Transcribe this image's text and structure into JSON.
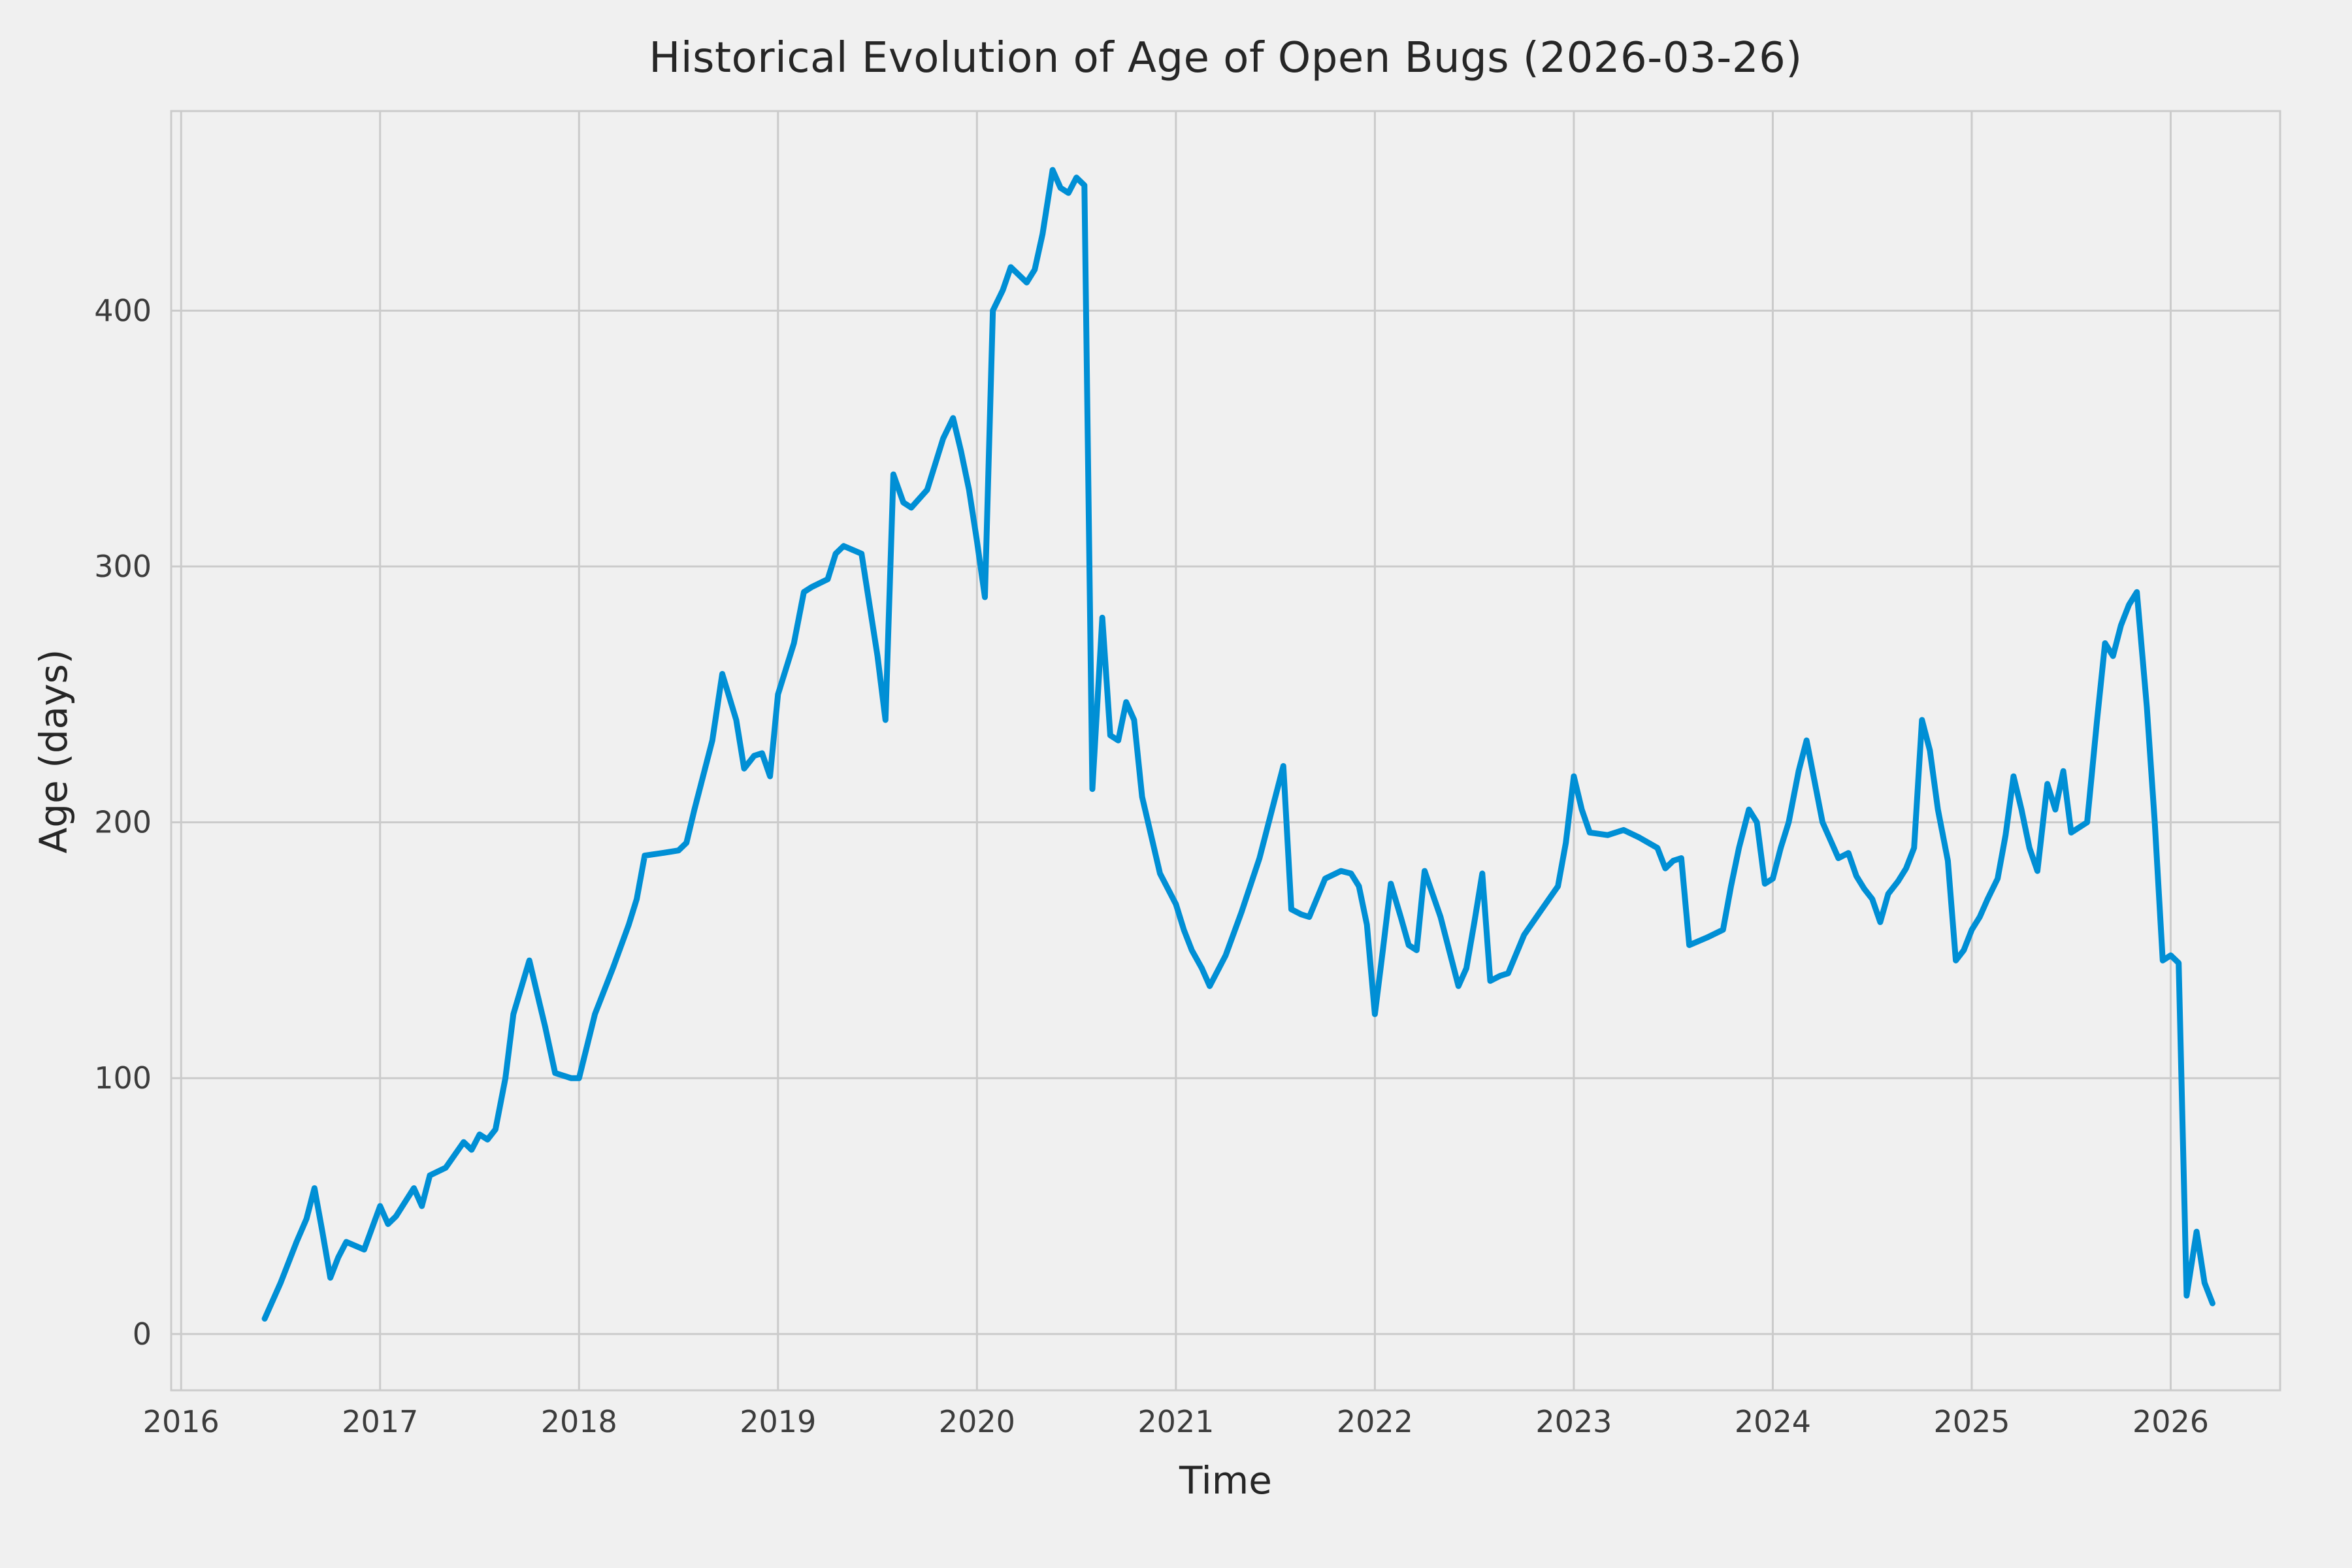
{
  "figure": {
    "background": "#f0f0f0",
    "grid_color": "#cbcbcb",
    "text_color": "#3c3c3c"
  },
  "chart_data": {
    "type": "line",
    "title": "Historical Evolution of Age of Open Bugs (2026-03-26)",
    "xlabel": "Time",
    "ylabel": "Age (days)",
    "line_color": "#008fd5",
    "line_width": 9,
    "grid": true,
    "legend": "none",
    "xlim": [
      2015.95,
      2026.55
    ],
    "ylim": [
      -22,
      478
    ],
    "xticks": [
      2016,
      2017,
      2018,
      2019,
      2020,
      2021,
      2022,
      2023,
      2024,
      2025,
      2026
    ],
    "yticks": [
      0,
      100,
      200,
      300,
      400
    ],
    "points": [
      [
        2016.42,
        6
      ],
      [
        2016.5,
        20
      ],
      [
        2016.58,
        36
      ],
      [
        2016.63,
        45
      ],
      [
        2016.67,
        57
      ],
      [
        2016.71,
        40
      ],
      [
        2016.75,
        22
      ],
      [
        2016.79,
        30
      ],
      [
        2016.83,
        36
      ],
      [
        2016.92,
        33
      ],
      [
        2017.0,
        50
      ],
      [
        2017.04,
        43
      ],
      [
        2017.08,
        46
      ],
      [
        2017.17,
        57
      ],
      [
        2017.21,
        50
      ],
      [
        2017.25,
        62
      ],
      [
        2017.33,
        65
      ],
      [
        2017.42,
        75
      ],
      [
        2017.46,
        72
      ],
      [
        2017.5,
        78
      ],
      [
        2017.54,
        76
      ],
      [
        2017.58,
        80
      ],
      [
        2017.63,
        100
      ],
      [
        2017.67,
        125
      ],
      [
        2017.75,
        146
      ],
      [
        2017.79,
        133
      ],
      [
        2017.83,
        120
      ],
      [
        2017.88,
        102
      ],
      [
        2017.92,
        101
      ],
      [
        2017.96,
        100
      ],
      [
        2018.0,
        100
      ],
      [
        2018.08,
        125
      ],
      [
        2018.17,
        143
      ],
      [
        2018.25,
        160
      ],
      [
        2018.29,
        170
      ],
      [
        2018.33,
        187
      ],
      [
        2018.42,
        188
      ],
      [
        2018.5,
        189
      ],
      [
        2018.54,
        192
      ],
      [
        2018.58,
        205
      ],
      [
        2018.67,
        232
      ],
      [
        2018.72,
        258
      ],
      [
        2018.79,
        240
      ],
      [
        2018.83,
        221
      ],
      [
        2018.88,
        226
      ],
      [
        2018.92,
        227
      ],
      [
        2018.96,
        218
      ],
      [
        2019.0,
        250
      ],
      [
        2019.08,
        270
      ],
      [
        2019.13,
        290
      ],
      [
        2019.17,
        292
      ],
      [
        2019.25,
        295
      ],
      [
        2019.29,
        305
      ],
      [
        2019.33,
        308
      ],
      [
        2019.42,
        305
      ],
      [
        2019.46,
        285
      ],
      [
        2019.5,
        265
      ],
      [
        2019.54,
        240
      ],
      [
        2019.58,
        336
      ],
      [
        2019.63,
        325
      ],
      [
        2019.67,
        323
      ],
      [
        2019.75,
        330
      ],
      [
        2019.79,
        340
      ],
      [
        2019.83,
        350
      ],
      [
        2019.88,
        358
      ],
      [
        2019.92,
        345
      ],
      [
        2019.96,
        330
      ],
      [
        2020.0,
        310
      ],
      [
        2020.04,
        288
      ],
      [
        2020.08,
        400
      ],
      [
        2020.13,
        408
      ],
      [
        2020.17,
        417
      ],
      [
        2020.25,
        411
      ],
      [
        2020.29,
        416
      ],
      [
        2020.33,
        430
      ],
      [
        2020.38,
        455
      ],
      [
        2020.42,
        448
      ],
      [
        2020.46,
        446
      ],
      [
        2020.5,
        452
      ],
      [
        2020.54,
        449
      ],
      [
        2020.58,
        213
      ],
      [
        2020.63,
        280
      ],
      [
        2020.67,
        234
      ],
      [
        2020.71,
        232
      ],
      [
        2020.75,
        247
      ],
      [
        2020.79,
        240
      ],
      [
        2020.83,
        210
      ],
      [
        2020.92,
        180
      ],
      [
        2021.0,
        168
      ],
      [
        2021.04,
        158
      ],
      [
        2021.08,
        150
      ],
      [
        2021.13,
        143
      ],
      [
        2021.17,
        136
      ],
      [
        2021.25,
        148
      ],
      [
        2021.33,
        165
      ],
      [
        2021.42,
        186
      ],
      [
        2021.5,
        210
      ],
      [
        2021.54,
        222
      ],
      [
        2021.58,
        166
      ],
      [
        2021.63,
        164
      ],
      [
        2021.67,
        163
      ],
      [
        2021.75,
        178
      ],
      [
        2021.83,
        181
      ],
      [
        2021.88,
        180
      ],
      [
        2021.92,
        175
      ],
      [
        2021.96,
        160
      ],
      [
        2022.0,
        125
      ],
      [
        2022.04,
        150
      ],
      [
        2022.08,
        176
      ],
      [
        2022.13,
        163
      ],
      [
        2022.17,
        152
      ],
      [
        2022.21,
        150
      ],
      [
        2022.25,
        181
      ],
      [
        2022.33,
        163
      ],
      [
        2022.38,
        148
      ],
      [
        2022.42,
        136
      ],
      [
        2022.46,
        143
      ],
      [
        2022.5,
        161
      ],
      [
        2022.54,
        180
      ],
      [
        2022.58,
        138
      ],
      [
        2022.63,
        140
      ],
      [
        2022.67,
        141
      ],
      [
        2022.75,
        156
      ],
      [
        2022.83,
        165
      ],
      [
        2022.92,
        175
      ],
      [
        2022.96,
        192
      ],
      [
        2023.0,
        218
      ],
      [
        2023.04,
        205
      ],
      [
        2023.08,
        196
      ],
      [
        2023.17,
        195
      ],
      [
        2023.25,
        197
      ],
      [
        2023.33,
        194
      ],
      [
        2023.42,
        190
      ],
      [
        2023.46,
        182
      ],
      [
        2023.5,
        185
      ],
      [
        2023.54,
        186
      ],
      [
        2023.58,
        152
      ],
      [
        2023.67,
        155
      ],
      [
        2023.75,
        158
      ],
      [
        2023.79,
        175
      ],
      [
        2023.83,
        190
      ],
      [
        2023.88,
        205
      ],
      [
        2023.92,
        200
      ],
      [
        2023.96,
        176
      ],
      [
        2024.0,
        178
      ],
      [
        2024.04,
        190
      ],
      [
        2024.08,
        200
      ],
      [
        2024.13,
        220
      ],
      [
        2024.17,
        232
      ],
      [
        2024.25,
        200
      ],
      [
        2024.29,
        193
      ],
      [
        2024.33,
        186
      ],
      [
        2024.38,
        188
      ],
      [
        2024.42,
        179
      ],
      [
        2024.46,
        174
      ],
      [
        2024.5,
        170
      ],
      [
        2024.54,
        161
      ],
      [
        2024.58,
        172
      ],
      [
        2024.63,
        177
      ],
      [
        2024.67,
        182
      ],
      [
        2024.71,
        190
      ],
      [
        2024.75,
        240
      ],
      [
        2024.79,
        228
      ],
      [
        2024.83,
        205
      ],
      [
        2024.88,
        185
      ],
      [
        2024.92,
        146
      ],
      [
        2024.96,
        150
      ],
      [
        2025.0,
        158
      ],
      [
        2025.04,
        163
      ],
      [
        2025.08,
        170
      ],
      [
        2025.13,
        178
      ],
      [
        2025.17,
        195
      ],
      [
        2025.21,
        218
      ],
      [
        2025.25,
        205
      ],
      [
        2025.29,
        190
      ],
      [
        2025.33,
        181
      ],
      [
        2025.38,
        215
      ],
      [
        2025.42,
        205
      ],
      [
        2025.46,
        220
      ],
      [
        2025.5,
        196
      ],
      [
        2025.54,
        198
      ],
      [
        2025.58,
        200
      ],
      [
        2025.63,
        240
      ],
      [
        2025.67,
        270
      ],
      [
        2025.71,
        265
      ],
      [
        2025.75,
        277
      ],
      [
        2025.79,
        285
      ],
      [
        2025.83,
        290
      ],
      [
        2025.88,
        245
      ],
      [
        2025.92,
        200
      ],
      [
        2025.96,
        146
      ],
      [
        2026.0,
        148
      ],
      [
        2026.04,
        145
      ],
      [
        2026.08,
        15
      ],
      [
        2026.13,
        40
      ],
      [
        2026.17,
        20
      ],
      [
        2026.21,
        12
      ]
    ]
  }
}
